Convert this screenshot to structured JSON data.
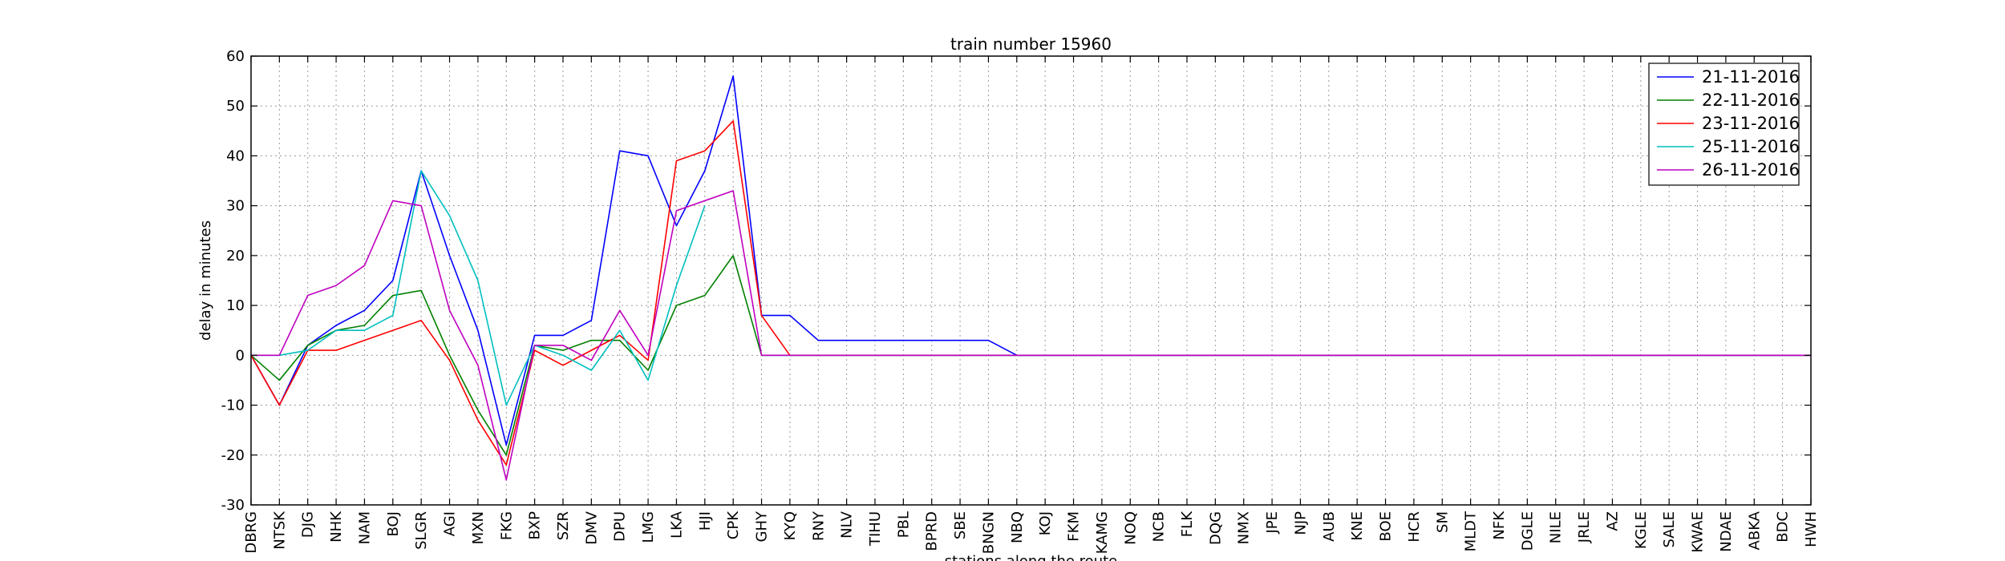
{
  "chart_data": {
    "type": "line",
    "title": "train number 15960",
    "xlabel": "stations along the route",
    "ylabel": "delay in minutes",
    "ylim": [
      -30,
      60
    ],
    "yticks": [
      -30,
      -20,
      -10,
      0,
      10,
      20,
      30,
      40,
      50,
      60
    ],
    "grid": true,
    "legend_position": "top-right",
    "categories": [
      "DBRG",
      "NTSK",
      "DJG",
      "NHK",
      "NAM",
      "BOJ",
      "SLGR",
      "AGI",
      "MXN",
      "FKG",
      "BXP",
      "SZR",
      "DMV",
      "DPU",
      "LMG",
      "LKA",
      "HJI",
      "CPK",
      "GHY",
      "KYQ",
      "RNY",
      "NLV",
      "TIHU",
      "PBL",
      "BPRD",
      "SBE",
      "BNGN",
      "NBQ",
      "KOJ",
      "FKM",
      "KAMG",
      "NOQ",
      "NCB",
      "FLK",
      "DQG",
      "NMX",
      "JPE",
      "NJP",
      "AUB",
      "KNE",
      "BOE",
      "HCR",
      "SM",
      "MLDT",
      "NFK",
      "DGLE",
      "NILE",
      "JRLE",
      "AZ",
      "KGLE",
      "SALE",
      "KWAE",
      "NDAE",
      "ABKA",
      "BDC",
      "HWH"
    ],
    "series": [
      {
        "name": "21-11-2016",
        "color": "#0000ff",
        "values": [
          0,
          -10,
          2,
          6,
          9,
          15,
          37,
          20,
          5,
          -18,
          4,
          4,
          7,
          41,
          40,
          26,
          37,
          56,
          8,
          8,
          3,
          3,
          3,
          3,
          3,
          3,
          3,
          0,
          0,
          0,
          0,
          0,
          0,
          0,
          0,
          0,
          0,
          0,
          0,
          0,
          0,
          0,
          0,
          0,
          0,
          0,
          0,
          0,
          0,
          0,
          0,
          0,
          0,
          0,
          0,
          0
        ]
      },
      {
        "name": "22-11-2016",
        "color": "#008000",
        "values": [
          0,
          -5,
          2,
          5,
          6,
          12,
          13,
          0,
          -11,
          -20,
          2,
          1,
          3,
          3,
          -3,
          10,
          12,
          20,
          0,
          0,
          0,
          0,
          0,
          0,
          0,
          0,
          0,
          0,
          0,
          0,
          0,
          0,
          0,
          0,
          0,
          0,
          0,
          0,
          0,
          0,
          0,
          0,
          0,
          0,
          0,
          0,
          0,
          0,
          0,
          0,
          0,
          0,
          0,
          0,
          0,
          0
        ]
      },
      {
        "name": "23-11-2016",
        "color": "#ff0000",
        "values": [
          0,
          -10,
          1,
          1,
          3,
          5,
          7,
          -1,
          -13,
          -22,
          1,
          -2,
          1,
          4,
          -1,
          39,
          41,
          47,
          8,
          0,
          0,
          0,
          0,
          0,
          0,
          0,
          0,
          0,
          0,
          0,
          0,
          0,
          0,
          0,
          0,
          0,
          0,
          0,
          0,
          0,
          0,
          0,
          0,
          0,
          0,
          0,
          0,
          0,
          0,
          0,
          0,
          0,
          0,
          0,
          0,
          0
        ]
      },
      {
        "name": "25-11-2016",
        "color": "#00bfbf",
        "values": [
          0,
          0,
          1,
          5,
          5,
          8,
          37,
          28,
          15,
          -10,
          2,
          0,
          -3,
          5,
          -5,
          14,
          30,
          null,
          0,
          0,
          0,
          0,
          0,
          0,
          0,
          0,
          0,
          0,
          0,
          0,
          0,
          0,
          0,
          0,
          0,
          0,
          0,
          0,
          0,
          0,
          0,
          0,
          0,
          0,
          0,
          0,
          0,
          0,
          0,
          0,
          0,
          0,
          0,
          0,
          0,
          0
        ]
      },
      {
        "name": "26-11-2016",
        "color": "#bf00bf",
        "values": [
          0,
          0,
          12,
          14,
          18,
          31,
          30,
          9,
          -2,
          -25,
          2,
          2,
          -1,
          9,
          0,
          29,
          31,
          33,
          0,
          0,
          0,
          0,
          0,
          0,
          0,
          0,
          0,
          0,
          0,
          0,
          0,
          0,
          0,
          0,
          0,
          0,
          0,
          0,
          0,
          0,
          0,
          0,
          0,
          0,
          0,
          0,
          0,
          0,
          0,
          0,
          0,
          0,
          0,
          0,
          0,
          0
        ]
      }
    ]
  }
}
